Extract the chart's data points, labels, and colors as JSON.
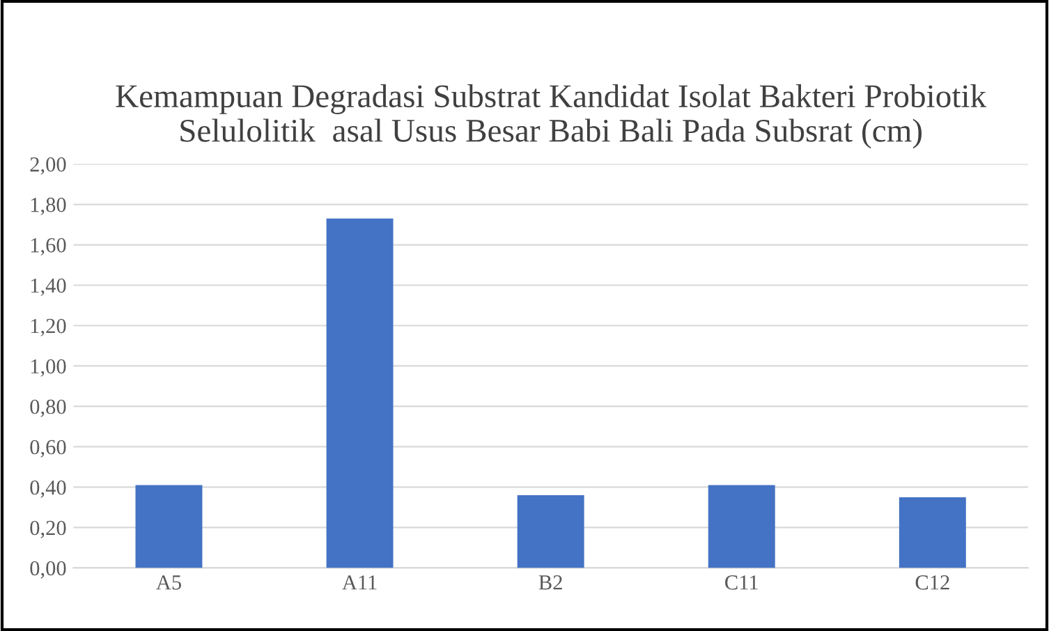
{
  "chart_data": {
    "type": "bar",
    "title": "Kemampuan Degradasi Substrat Kandidat Isolat Bakteri Probiotik Selulolitik  asal Usus Besar Babi Bali Pada Subsrat (cm)",
    "categories": [
      "A5",
      "A11",
      "B2",
      "C11",
      "C12"
    ],
    "values": [
      0.41,
      1.73,
      0.36,
      0.41,
      0.35
    ],
    "color": "#4472c4",
    "ylim": [
      0,
      2
    ],
    "yticks": [
      {
        "value": 0,
        "label": "0,00"
      },
      {
        "value": 0.2,
        "label": "0,20"
      },
      {
        "value": 0.4,
        "label": "0,40"
      },
      {
        "value": 0.6,
        "label": "0,60"
      },
      {
        "value": 0.8,
        "label": "0,80"
      },
      {
        "value": 1.0,
        "label": "1,00"
      },
      {
        "value": 1.2,
        "label": "1,20"
      },
      {
        "value": 1.4,
        "label": "1,40"
      },
      {
        "value": 1.6,
        "label": "1,60"
      },
      {
        "value": 1.8,
        "label": "1,80"
      },
      {
        "value": 2.0,
        "label": "2,00"
      }
    ],
    "grid": "y"
  }
}
